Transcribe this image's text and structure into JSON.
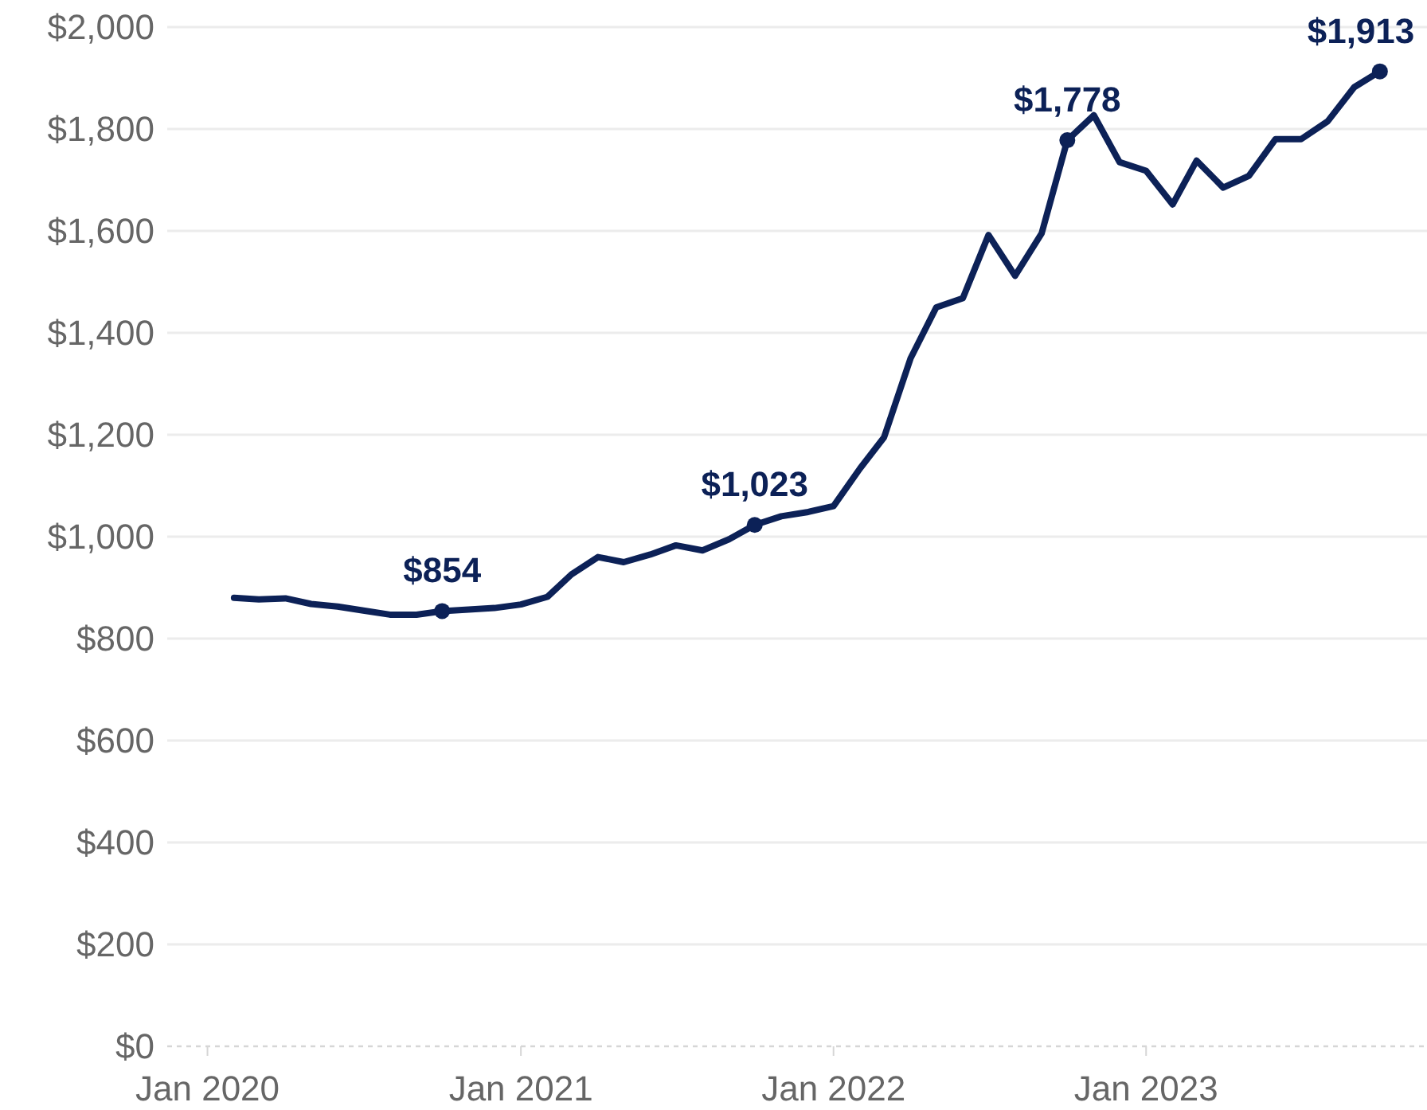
{
  "chart_data": {
    "type": "line",
    "x": [
      "2020-02",
      "2020-03",
      "2020-04",
      "2020-05",
      "2020-06",
      "2020-07",
      "2020-08",
      "2020-09",
      "2020-10",
      "2020-11",
      "2020-12",
      "2021-01",
      "2021-02",
      "2021-03",
      "2021-04",
      "2021-05",
      "2021-06",
      "2021-07",
      "2021-08",
      "2021-09",
      "2021-10",
      "2021-11",
      "2021-12",
      "2022-01",
      "2022-02",
      "2022-03",
      "2022-04",
      "2022-05",
      "2022-06",
      "2022-07",
      "2022-08",
      "2022-09",
      "2022-10",
      "2022-11",
      "2022-12",
      "2023-01",
      "2023-02",
      "2023-03",
      "2023-04",
      "2023-05",
      "2023-06",
      "2023-07",
      "2023-08",
      "2023-09",
      "2023-10"
    ],
    "series": [
      {
        "color": "#0c2157",
        "values": [
          880,
          877,
          879,
          868,
          863,
          855,
          847,
          847,
          854,
          857,
          860,
          867,
          882,
          926,
          960,
          950,
          965,
          983,
          973,
          995,
          1023,
          1040,
          1048,
          1060,
          1134,
          1195,
          1350,
          1450,
          1468,
          1592,
          1512,
          1595,
          1778,
          1827,
          1735,
          1718,
          1652,
          1738,
          1685,
          1708,
          1780,
          1780,
          1815,
          1882,
          1913
        ]
      }
    ],
    "xlim": [
      "2019-11-15",
      "2023-11-25"
    ],
    "ylim": [
      0,
      2000
    ],
    "yticks": [
      {
        "value": 0,
        "label": "$0"
      },
      {
        "value": 200,
        "label": "$200"
      },
      {
        "value": 400,
        "label": "$400"
      },
      {
        "value": 600,
        "label": "$600"
      },
      {
        "value": 800,
        "label": "$800"
      },
      {
        "value": 1000,
        "label": "$1,000"
      },
      {
        "value": 1200,
        "label": "$1,200"
      },
      {
        "value": 1400,
        "label": "$1,400"
      },
      {
        "value": 1600,
        "label": "$1,600"
      },
      {
        "value": 1800,
        "label": "$1,800"
      },
      {
        "value": 2000,
        "label": "$2,000"
      }
    ],
    "xticks": [
      {
        "value": "2020-01",
        "label": "Jan 2020"
      },
      {
        "value": "2021-01",
        "label": "Jan 2021"
      },
      {
        "value": "2022-01",
        "label": "Jan 2022"
      },
      {
        "value": "2023-01",
        "label": "Jan 2023"
      }
    ],
    "grid": "y",
    "marker": "none",
    "line_style": "solid",
    "annotations": [
      {
        "text": "$854",
        "x": "2020-10",
        "y": 854
      },
      {
        "text": "$1,023",
        "x": "2021-10",
        "y": 1023
      },
      {
        "text": "$1,778",
        "x": "2022-10",
        "y": 1778
      },
      {
        "text": "$1,913",
        "x": "2023-10",
        "y": 1913
      }
    ]
  }
}
